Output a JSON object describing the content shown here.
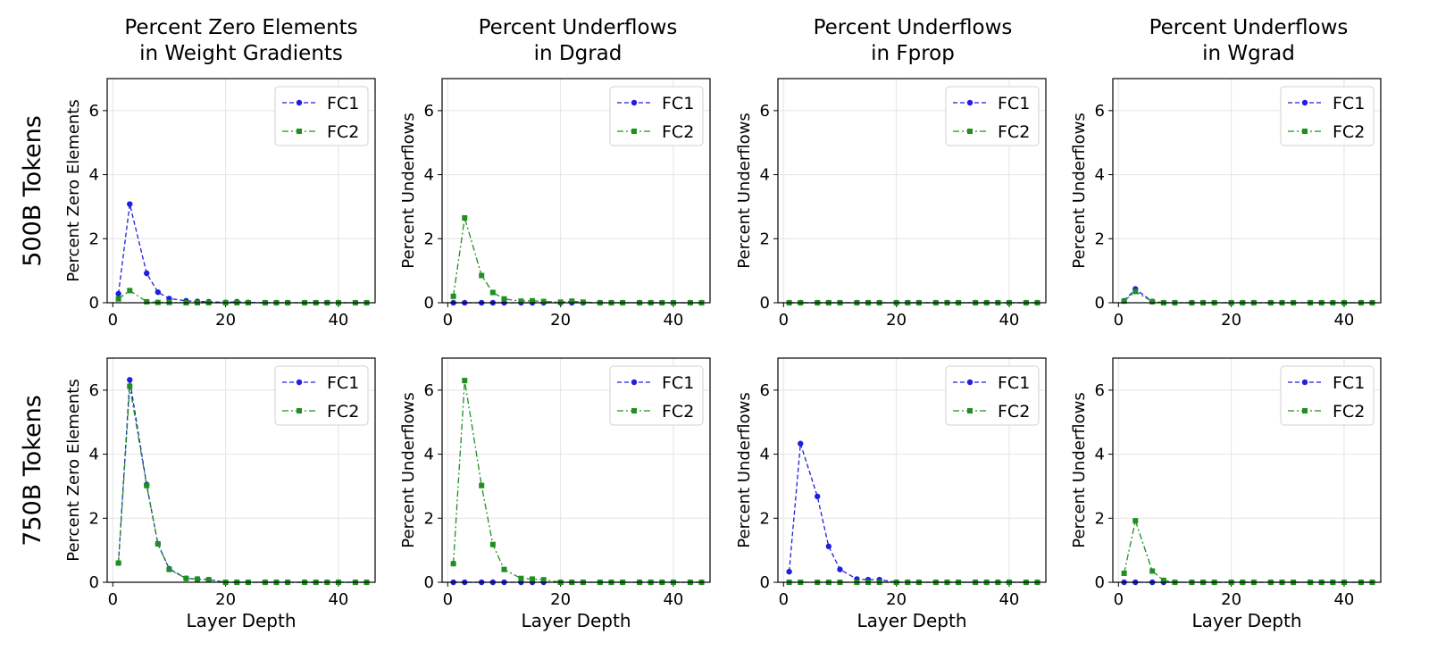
{
  "row_labels": [
    "500B Tokens",
    "750B Tokens"
  ],
  "column_titles": [
    [
      "Percent Zero Elements",
      "in Weight Gradients"
    ],
    [
      "Percent Underflows",
      "in Dgrad"
    ],
    [
      "Percent Underflows",
      "in Fprop"
    ],
    [
      "Percent Underflows",
      "in Wgrad"
    ]
  ],
  "colors": {
    "FC1": "#1f1fe0",
    "FC2": "#1f8f1f"
  },
  "chart_data": [
    {
      "type": "line",
      "row": 0,
      "col": 0,
      "title": "",
      "xlabel": "",
      "ylabel": "Percent Zero Elements",
      "xlim": [
        -1,
        46.5
      ],
      "ylim": [
        0,
        7
      ],
      "xticks": [
        0,
        20,
        40
      ],
      "yticks": [
        0,
        2,
        4,
        6
      ],
      "grid": true,
      "legend": "top-right",
      "x": [
        1,
        3,
        6,
        8,
        10,
        13,
        15,
        17,
        20,
        22,
        24,
        27,
        29,
        31,
        34,
        36,
        38,
        40,
        43,
        45
      ],
      "series": [
        {
          "name": "FC1",
          "style": "dashed",
          "marker": "circle",
          "values": [
            0.28,
            3.08,
            0.92,
            0.33,
            0.13,
            0.06,
            0.04,
            0.03,
            0.01,
            0.03,
            0.01,
            0,
            0,
            0,
            0,
            0,
            0,
            0,
            0,
            0
          ]
        },
        {
          "name": "FC2",
          "style": "dashdot",
          "marker": "square",
          "values": [
            0.12,
            0.38,
            0.03,
            0.01,
            0.01,
            0,
            0,
            0,
            0,
            0,
            0,
            0,
            0,
            0,
            0,
            0,
            0,
            0,
            0,
            0
          ]
        }
      ]
    },
    {
      "type": "line",
      "row": 0,
      "col": 1,
      "title": "",
      "xlabel": "",
      "ylabel": "Percent Underflows",
      "xlim": [
        -1,
        46.5
      ],
      "ylim": [
        0,
        7
      ],
      "xticks": [
        0,
        20,
        40
      ],
      "yticks": [
        0,
        2,
        4,
        6
      ],
      "grid": true,
      "legend": "top-right",
      "x": [
        1,
        3,
        6,
        8,
        10,
        13,
        15,
        17,
        20,
        22,
        24,
        27,
        29,
        31,
        34,
        36,
        38,
        40,
        43,
        45
      ],
      "series": [
        {
          "name": "FC1",
          "style": "dashed",
          "marker": "circle",
          "values": [
            0,
            0,
            0,
            0,
            0,
            0,
            0,
            0,
            0,
            0,
            0,
            0,
            0,
            0,
            0,
            0,
            0,
            0,
            0,
            0
          ]
        },
        {
          "name": "FC2",
          "style": "dashdot",
          "marker": "square",
          "values": [
            0.2,
            2.65,
            0.85,
            0.32,
            0.12,
            0.05,
            0.06,
            0.04,
            0.02,
            0.05,
            0.02,
            0,
            0,
            0,
            0,
            0,
            0,
            0,
            0,
            0
          ]
        }
      ]
    },
    {
      "type": "line",
      "row": 0,
      "col": 2,
      "title": "",
      "xlabel": "",
      "ylabel": "Percent Underflows",
      "xlim": [
        -1,
        46.5
      ],
      "ylim": [
        0,
        7
      ],
      "xticks": [
        0,
        20,
        40
      ],
      "yticks": [
        0,
        2,
        4,
        6
      ],
      "grid": true,
      "legend": "top-right",
      "x": [
        1,
        3,
        6,
        8,
        10,
        13,
        15,
        17,
        20,
        22,
        24,
        27,
        29,
        31,
        34,
        36,
        38,
        40,
        43,
        45
      ],
      "series": [
        {
          "name": "FC1",
          "style": "dashed",
          "marker": "circle",
          "values": [
            0,
            0,
            0,
            0,
            0,
            0,
            0,
            0,
            0,
            0,
            0,
            0,
            0,
            0,
            0,
            0,
            0,
            0,
            0,
            0
          ]
        },
        {
          "name": "FC2",
          "style": "dashdot",
          "marker": "square",
          "values": [
            0,
            0,
            0,
            0,
            0,
            0,
            0,
            0,
            0,
            0,
            0,
            0,
            0,
            0,
            0,
            0,
            0,
            0,
            0,
            0
          ]
        }
      ]
    },
    {
      "type": "line",
      "row": 0,
      "col": 3,
      "title": "",
      "xlabel": "",
      "ylabel": "Percent Underflows",
      "xlim": [
        -1,
        46.5
      ],
      "ylim": [
        0,
        7
      ],
      "xticks": [
        0,
        20,
        40
      ],
      "yticks": [
        0,
        2,
        4,
        6
      ],
      "grid": true,
      "legend": "top-right",
      "x": [
        1,
        3,
        6,
        8,
        10,
        13,
        15,
        17,
        20,
        22,
        24,
        27,
        29,
        31,
        34,
        36,
        38,
        40,
        43,
        45
      ],
      "series": [
        {
          "name": "FC1",
          "style": "dashed",
          "marker": "circle",
          "values": [
            0.06,
            0.43,
            0.04,
            0,
            0,
            0,
            0,
            0,
            0,
            0,
            0,
            0,
            0,
            0,
            0,
            0,
            0,
            0,
            0,
            0
          ]
        },
        {
          "name": "FC2",
          "style": "dashdot",
          "marker": "square",
          "values": [
            0.05,
            0.35,
            0.03,
            0,
            0,
            0,
            0,
            0,
            0,
            0,
            0,
            0,
            0,
            0,
            0,
            0,
            0,
            0,
            0,
            0
          ]
        }
      ]
    },
    {
      "type": "line",
      "row": 1,
      "col": 0,
      "title": "",
      "xlabel": "Layer Depth",
      "ylabel": "Percent Zero Elements",
      "xlim": [
        -1,
        46.5
      ],
      "ylim": [
        0,
        7
      ],
      "xticks": [
        0,
        20,
        40
      ],
      "yticks": [
        0,
        2,
        4,
        6
      ],
      "grid": true,
      "legend": "top-right",
      "x": [
        1,
        3,
        6,
        8,
        10,
        13,
        15,
        17,
        20,
        22,
        24,
        27,
        29,
        31,
        34,
        36,
        38,
        40,
        43,
        45
      ],
      "series": [
        {
          "name": "FC1",
          "style": "dashed",
          "marker": "circle",
          "values": [
            0.6,
            6.32,
            3.05,
            1.2,
            0.42,
            0.12,
            0.1,
            0.08,
            0,
            0,
            0,
            0,
            0,
            0,
            0,
            0,
            0,
            0,
            0,
            0
          ]
        },
        {
          "name": "FC2",
          "style": "dashdot",
          "marker": "square",
          "values": [
            0.6,
            6.12,
            3.02,
            1.2,
            0.4,
            0.12,
            0.1,
            0.08,
            0,
            0,
            0,
            0,
            0,
            0,
            0,
            0,
            0,
            0,
            0,
            0
          ]
        }
      ]
    },
    {
      "type": "line",
      "row": 1,
      "col": 1,
      "title": "",
      "xlabel": "Layer Depth",
      "ylabel": "Percent Underflows",
      "xlim": [
        -1,
        46.5
      ],
      "ylim": [
        0,
        7
      ],
      "xticks": [
        0,
        20,
        40
      ],
      "yticks": [
        0,
        2,
        4,
        6
      ],
      "grid": true,
      "legend": "top-right",
      "x": [
        1,
        3,
        6,
        8,
        10,
        13,
        15,
        17,
        20,
        22,
        24,
        27,
        29,
        31,
        34,
        36,
        38,
        40,
        43,
        45
      ],
      "series": [
        {
          "name": "FC1",
          "style": "dashed",
          "marker": "circle",
          "values": [
            0,
            0,
            0,
            0,
            0,
            0,
            0,
            0,
            0,
            0,
            0,
            0,
            0,
            0,
            0,
            0,
            0,
            0,
            0,
            0
          ]
        },
        {
          "name": "FC2",
          "style": "dashdot",
          "marker": "square",
          "values": [
            0.58,
            6.3,
            3.02,
            1.18,
            0.4,
            0.12,
            0.1,
            0.08,
            0,
            0,
            0,
            0,
            0,
            0,
            0,
            0,
            0,
            0,
            0,
            0
          ]
        }
      ]
    },
    {
      "type": "line",
      "row": 1,
      "col": 2,
      "title": "",
      "xlabel": "Layer Depth",
      "ylabel": "Percent Underflows",
      "xlim": [
        -1,
        46.5
      ],
      "ylim": [
        0,
        7
      ],
      "xticks": [
        0,
        20,
        40
      ],
      "yticks": [
        0,
        2,
        4,
        6
      ],
      "grid": true,
      "legend": "top-right",
      "x": [
        1,
        3,
        6,
        8,
        10,
        13,
        15,
        17,
        20,
        22,
        24,
        27,
        29,
        31,
        34,
        36,
        38,
        40,
        43,
        45
      ],
      "series": [
        {
          "name": "FC1",
          "style": "dashed",
          "marker": "circle",
          "values": [
            0.33,
            4.33,
            2.68,
            1.12,
            0.4,
            0.1,
            0.08,
            0.08,
            0,
            0,
            0,
            0,
            0,
            0,
            0,
            0,
            0,
            0,
            0,
            0
          ]
        },
        {
          "name": "FC2",
          "style": "dashdot",
          "marker": "square",
          "values": [
            0,
            0,
            0,
            0,
            0,
            0,
            0,
            0,
            0,
            0,
            0,
            0,
            0,
            0,
            0,
            0,
            0,
            0,
            0,
            0
          ]
        }
      ]
    },
    {
      "type": "line",
      "row": 1,
      "col": 3,
      "title": "",
      "xlabel": "Layer Depth",
      "ylabel": "Percent Underflows",
      "xlim": [
        -1,
        46.5
      ],
      "ylim": [
        0,
        7
      ],
      "xticks": [
        0,
        20,
        40
      ],
      "yticks": [
        0,
        2,
        4,
        6
      ],
      "grid": true,
      "legend": "top-right",
      "x": [
        1,
        3,
        6,
        8,
        10,
        13,
        15,
        17,
        20,
        22,
        24,
        27,
        29,
        31,
        34,
        36,
        38,
        40,
        43,
        45
      ],
      "series": [
        {
          "name": "FC1",
          "style": "dashed",
          "marker": "circle",
          "values": [
            0,
            0,
            0,
            0,
            0,
            0,
            0,
            0,
            0,
            0,
            0,
            0,
            0,
            0,
            0,
            0,
            0,
            0,
            0,
            0
          ]
        },
        {
          "name": "FC2",
          "style": "dashdot",
          "marker": "square",
          "values": [
            0.28,
            1.92,
            0.35,
            0.06,
            0,
            0,
            0,
            0,
            0,
            0,
            0,
            0,
            0,
            0,
            0,
            0,
            0,
            0,
            0,
            0
          ]
        }
      ]
    }
  ]
}
